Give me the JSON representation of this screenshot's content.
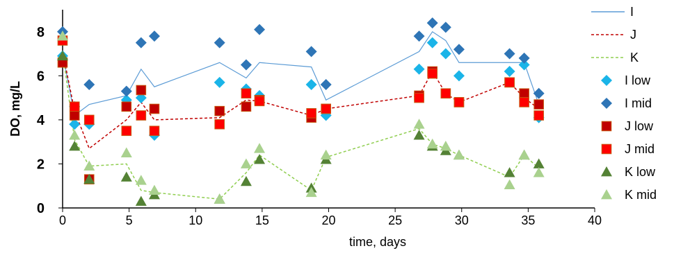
{
  "chart_data": {
    "type": "scatter",
    "title": "",
    "xlabel": "time, days",
    "ylabel": "DO, mg/L",
    "xlim": [
      0,
      40
    ],
    "ylim": [
      0,
      9
    ],
    "xticks": [
      0,
      5,
      10,
      15,
      20,
      25,
      30,
      35,
      40
    ],
    "yticks": [
      0,
      2,
      4,
      6,
      8
    ],
    "legend_position": "right",
    "grid": false,
    "series": [
      {
        "name": "I",
        "kind": "line",
        "style": "solid",
        "color": "#5b9bd5",
        "x": [
          0,
          0.9,
          2,
          4.8,
          5.9,
          6.9,
          11.8,
          13.8,
          14.8,
          18.7,
          19.8,
          26.8,
          27.8,
          28.8,
          29.8,
          33.6,
          34.7,
          35.8
        ],
        "y": [
          7.0,
          4.2,
          4.7,
          5.1,
          6.3,
          5.5,
          6.6,
          5.9,
          6.6,
          6.4,
          4.9,
          7.1,
          8.0,
          7.6,
          6.6,
          6.6,
          6.6,
          4.7
        ]
      },
      {
        "name": "J",
        "kind": "line",
        "style": "dashed",
        "color": "#c00000",
        "x": [
          0,
          0.9,
          2,
          4.8,
          5.9,
          6.9,
          11.8,
          13.8,
          14.8,
          18.7,
          19.8,
          26.8,
          27.8,
          28.8,
          29.8,
          33.6,
          34.7,
          35.8
        ],
        "y": [
          7.1,
          4.4,
          2.7,
          4.0,
          4.8,
          4.0,
          4.1,
          4.9,
          4.85,
          4.2,
          4.5,
          5.1,
          6.2,
          5.2,
          4.8,
          5.7,
          5.0,
          4.5
        ]
      },
      {
        "name": "K",
        "kind": "line",
        "style": "dashed",
        "color": "#8fce4f",
        "x": [
          0,
          0.9,
          2,
          4.8,
          5.9,
          6.9,
          11.8,
          13.8,
          14.8,
          18.7,
          19.8,
          26.8,
          27.8,
          28.8,
          29.8,
          33.6,
          34.7,
          35.8
        ],
        "y": [
          7.1,
          3.1,
          1.9,
          2.0,
          0.8,
          0.7,
          0.4,
          1.6,
          2.4,
          0.8,
          2.3,
          3.6,
          2.9,
          2.7,
          2.4,
          1.4,
          2.4,
          1.8
        ]
      },
      {
        "name": "I low",
        "kind": "marker",
        "marker": "diamond",
        "color": "#1ab4e8",
        "x": [
          0,
          0.9,
          2,
          4.8,
          5.9,
          6.9,
          11.8,
          13.8,
          14.8,
          18.7,
          19.8,
          26.8,
          27.8,
          28.8,
          29.8,
          33.6,
          34.7,
          35.8
        ],
        "y": [
          6.9,
          3.8,
          3.8,
          4.9,
          5.0,
          3.3,
          5.7,
          5.4,
          5.1,
          5.6,
          4.2,
          6.3,
          7.5,
          7.0,
          6.0,
          6.2,
          6.5,
          4.1
        ]
      },
      {
        "name": "I mid",
        "kind": "marker",
        "marker": "diamond",
        "color": "#2e75b6",
        "x": [
          0,
          0.9,
          2,
          4.8,
          5.9,
          6.9,
          11.8,
          13.8,
          14.8,
          18.7,
          19.8,
          26.8,
          27.8,
          28.8,
          29.8,
          33.6,
          34.7,
          35.8
        ],
        "y": [
          8.0,
          4.6,
          5.6,
          5.3,
          7.5,
          7.8,
          7.5,
          6.5,
          8.1,
          7.1,
          5.6,
          7.8,
          8.4,
          8.2,
          7.2,
          7.0,
          6.8,
          5.2
        ]
      },
      {
        "name": "J low",
        "kind": "marker",
        "marker": "square",
        "color": "#c00000",
        "x": [
          0,
          0.9,
          2,
          4.8,
          5.9,
          6.9,
          11.8,
          13.8,
          14.8,
          18.7,
          19.8,
          26.8,
          27.8,
          28.8,
          29.8,
          33.6,
          34.7,
          35.8
        ],
        "y": [
          6.6,
          4.2,
          1.3,
          4.6,
          5.35,
          4.5,
          4.4,
          4.6,
          4.9,
          4.1,
          4.5,
          5.1,
          6.2,
          5.2,
          4.8,
          5.7,
          5.2,
          4.7
        ]
      },
      {
        "name": "J mid",
        "kind": "marker",
        "marker": "square",
        "color": "#ff0000",
        "x": [
          0,
          0.9,
          2,
          4.8,
          5.9,
          6.9,
          11.8,
          13.8,
          14.8,
          18.7,
          19.8,
          26.8,
          27.8,
          28.8,
          29.8,
          33.6,
          34.7,
          35.8
        ],
        "y": [
          7.6,
          4.6,
          4.0,
          3.5,
          4.2,
          3.5,
          3.8,
          5.2,
          4.85,
          4.3,
          4.5,
          5.0,
          6.1,
          5.2,
          4.8,
          5.7,
          4.8,
          4.2
        ]
      },
      {
        "name": "K low",
        "kind": "marker",
        "marker": "triangle",
        "color": "#548235",
        "x": [
          0,
          0.9,
          2,
          4.8,
          5.9,
          6.9,
          11.8,
          13.8,
          14.8,
          18.7,
          19.8,
          26.8,
          27.8,
          28.8,
          29.8,
          33.6,
          34.7,
          35.8
        ],
        "y": [
          6.9,
          2.8,
          1.3,
          1.4,
          0.3,
          0.6,
          0.4,
          1.2,
          2.2,
          0.9,
          2.2,
          3.3,
          2.8,
          2.6,
          2.4,
          1.6,
          2.4,
          2.0
        ]
      },
      {
        "name": "K mid",
        "kind": "marker",
        "marker": "triangle",
        "color": "#a9d18e",
        "x": [
          0,
          0.9,
          2,
          4.8,
          5.9,
          6.9,
          11.8,
          13.8,
          14.8,
          18.7,
          19.8,
          26.8,
          27.8,
          28.8,
          29.8,
          33.6,
          34.7,
          35.8
        ],
        "y": [
          7.8,
          3.3,
          1.9,
          2.5,
          1.25,
          0.8,
          0.4,
          2.0,
          2.7,
          0.7,
          2.4,
          3.8,
          2.9,
          2.8,
          2.4,
          1.05,
          2.4,
          1.6
        ]
      }
    ]
  }
}
